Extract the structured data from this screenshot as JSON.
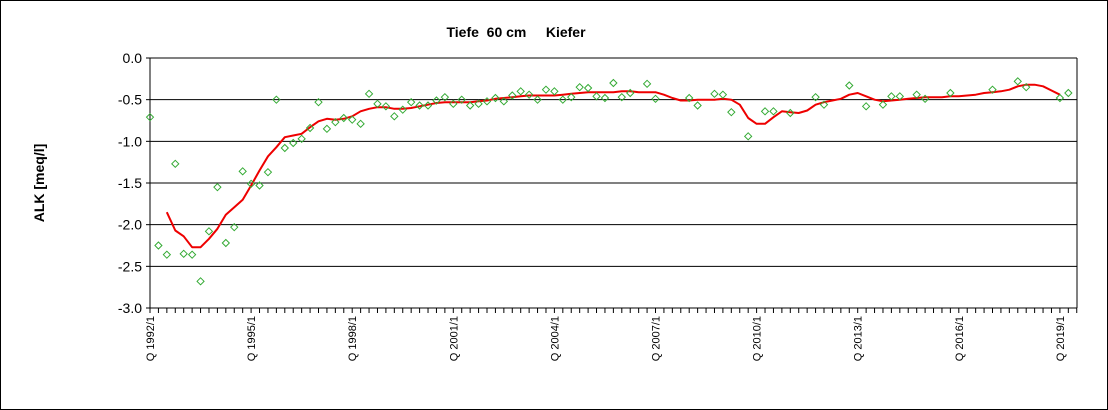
{
  "chart_data": {
    "type": "line",
    "title": "Tiefe  60 cm     Kiefer",
    "xlabel": "",
    "ylabel": "ALK [meq/l]",
    "ylim": [
      -3.0,
      0.0
    ],
    "yticks": [
      "0.0",
      "-0.5",
      "-1.0",
      "-1.5",
      "-2.0",
      "-2.5",
      "-3.0"
    ],
    "xticks": [
      "Q 1992/1",
      "Q 1995/1",
      "Q 1998/1",
      "Q 2001/1",
      "Q 2004/1",
      "Q 2007/1",
      "Q 2010/1",
      "Q 2013/1",
      "Q 2016/1",
      "Q 2019/1"
    ],
    "grid": "horizontal",
    "legend": "none",
    "colors": {
      "points": "#33aa33",
      "trend": "#ee0000",
      "grid": "#000000"
    },
    "series": [
      {
        "type": "scatter",
        "marker": "diamond-open",
        "points": [
          [
            "1992/1",
            -0.71
          ],
          [
            "1992/2",
            -2.25
          ],
          [
            "1992/3",
            -2.36
          ],
          [
            "1992/4",
            -1.27
          ],
          [
            "1993/1",
            -2.35
          ],
          [
            "1993/2",
            -2.36
          ],
          [
            "1993/3",
            -2.68
          ],
          [
            "1993/4",
            -2.08
          ],
          [
            "1994/1",
            -1.55
          ],
          [
            "1994/2",
            -2.22
          ],
          [
            "1994/3",
            -2.03
          ],
          [
            "1994/4",
            -1.36
          ],
          [
            "1995/1",
            -1.51
          ],
          [
            "1995/2",
            -1.53
          ],
          [
            "1995/3",
            -1.37
          ],
          [
            "1995/4",
            -0.5
          ],
          [
            "1996/1",
            -1.08
          ],
          [
            "1996/2",
            -1.02
          ],
          [
            "1996/3",
            -0.97
          ],
          [
            "1996/4",
            -0.84
          ],
          [
            "1997/1",
            -0.53
          ],
          [
            "1997/2",
            -0.85
          ],
          [
            "1997/3",
            -0.77
          ],
          [
            "1997/4",
            -0.72
          ],
          [
            "1998/1",
            -0.74
          ],
          [
            "1998/2",
            -0.79
          ],
          [
            "1998/3",
            -0.43
          ],
          [
            "1998/4",
            -0.55
          ],
          [
            "1999/1",
            -0.58
          ],
          [
            "1999/2",
            -0.7
          ],
          [
            "1999/3",
            -0.62
          ],
          [
            "1999/4",
            -0.53
          ],
          [
            "2000/1",
            -0.57
          ],
          [
            "2000/2",
            -0.57
          ],
          [
            "2000/3",
            -0.51
          ],
          [
            "2000/4",
            -0.47
          ],
          [
            "2001/1",
            -0.55
          ],
          [
            "2001/2",
            -0.5
          ],
          [
            "2001/3",
            -0.57
          ],
          [
            "2001/4",
            -0.55
          ],
          [
            "2002/1",
            -0.52
          ],
          [
            "2002/2",
            -0.48
          ],
          [
            "2002/3",
            -0.52
          ],
          [
            "2002/4",
            -0.45
          ],
          [
            "2003/1",
            -0.4
          ],
          [
            "2003/2",
            -0.44
          ],
          [
            "2003/3",
            -0.5
          ],
          [
            "2003/4",
            -0.38
          ],
          [
            "2004/1",
            -0.4
          ],
          [
            "2004/2",
            -0.5
          ],
          [
            "2004/3",
            -0.47
          ],
          [
            "2004/4",
            -0.35
          ],
          [
            "2005/1",
            -0.36
          ],
          [
            "2005/2",
            -0.46
          ],
          [
            "2005/3",
            -0.48
          ],
          [
            "2005/4",
            -0.3
          ],
          [
            "2006/1",
            -0.47
          ],
          [
            "2006/2",
            -0.42
          ],
          [
            "2006/4",
            -0.31
          ],
          [
            "2007/1",
            -0.49
          ],
          [
            "2008/1",
            -0.48
          ],
          [
            "2008/2",
            -0.57
          ],
          [
            "2008/4",
            -0.43
          ],
          [
            "2009/1",
            -0.44
          ],
          [
            "2009/2",
            -0.65
          ],
          [
            "2009/4",
            -0.94
          ],
          [
            "2010/2",
            -0.64
          ],
          [
            "2010/3",
            -0.64
          ],
          [
            "2011/1",
            -0.66
          ],
          [
            "2011/4",
            -0.47
          ],
          [
            "2012/1",
            -0.56
          ],
          [
            "2012/4",
            -0.33
          ],
          [
            "2013/2",
            -0.58
          ],
          [
            "2013/4",
            -0.56
          ],
          [
            "2014/1",
            -0.46
          ],
          [
            "2014/2",
            -0.46
          ],
          [
            "2014/4",
            -0.44
          ],
          [
            "2015/1",
            -0.49
          ],
          [
            "2015/4",
            -0.42
          ],
          [
            "2017/1",
            -0.38
          ],
          [
            "2017/4",
            -0.28
          ],
          [
            "2018/1",
            -0.35
          ],
          [
            "2019/1",
            -0.48
          ],
          [
            "2019/2",
            -0.42
          ]
        ]
      },
      {
        "type": "line",
        "points": [
          [
            "1992/3",
            -1.85
          ],
          [
            "1992/4",
            -2.07
          ],
          [
            "1993/1",
            -2.14
          ],
          [
            "1993/2",
            -2.27
          ],
          [
            "1993/3",
            -2.27
          ],
          [
            "1993/4",
            -2.17
          ],
          [
            "1994/1",
            -2.05
          ],
          [
            "1994/2",
            -1.88
          ],
          [
            "1994/3",
            -1.79
          ],
          [
            "1994/4",
            -1.7
          ],
          [
            "1995/1",
            -1.53
          ],
          [
            "1995/2",
            -1.35
          ],
          [
            "1995/3",
            -1.18
          ],
          [
            "1995/4",
            -1.07
          ],
          [
            "1996/1",
            -0.95
          ],
          [
            "1996/2",
            -0.93
          ],
          [
            "1996/3",
            -0.91
          ],
          [
            "1996/4",
            -0.83
          ],
          [
            "1997/1",
            -0.76
          ],
          [
            "1997/2",
            -0.73
          ],
          [
            "1997/3",
            -0.74
          ],
          [
            "1997/4",
            -0.73
          ],
          [
            "1998/1",
            -0.7
          ],
          [
            "1998/2",
            -0.64
          ],
          [
            "1998/3",
            -0.61
          ],
          [
            "1998/4",
            -0.59
          ],
          [
            "1999/1",
            -0.59
          ],
          [
            "1999/2",
            -0.61
          ],
          [
            "1999/3",
            -0.61
          ],
          [
            "1999/4",
            -0.6
          ],
          [
            "2000/1",
            -0.58
          ],
          [
            "2000/2",
            -0.56
          ],
          [
            "2000/3",
            -0.54
          ],
          [
            "2000/4",
            -0.53
          ],
          [
            "2001/1",
            -0.53
          ],
          [
            "2001/2",
            -0.53
          ],
          [
            "2001/3",
            -0.53
          ],
          [
            "2001/4",
            -0.52
          ],
          [
            "2002/1",
            -0.51
          ],
          [
            "2002/2",
            -0.49
          ],
          [
            "2002/3",
            -0.48
          ],
          [
            "2002/4",
            -0.47
          ],
          [
            "2003/1",
            -0.46
          ],
          [
            "2003/2",
            -0.45
          ],
          [
            "2003/3",
            -0.45
          ],
          [
            "2003/4",
            -0.45
          ],
          [
            "2004/1",
            -0.45
          ],
          [
            "2004/2",
            -0.44
          ],
          [
            "2004/3",
            -0.43
          ],
          [
            "2004/4",
            -0.42
          ],
          [
            "2005/1",
            -0.41
          ],
          [
            "2005/2",
            -0.41
          ],
          [
            "2005/3",
            -0.41
          ],
          [
            "2005/4",
            -0.41
          ],
          [
            "2006/1",
            -0.4
          ],
          [
            "2006/2",
            -0.4
          ],
          [
            "2006/3",
            -0.41
          ],
          [
            "2006/4",
            -0.41
          ],
          [
            "2007/1",
            -0.41
          ],
          [
            "2007/2",
            -0.44
          ],
          [
            "2007/3",
            -0.48
          ],
          [
            "2007/4",
            -0.51
          ],
          [
            "2008/1",
            -0.51
          ],
          [
            "2008/2",
            -0.5
          ],
          [
            "2008/3",
            -0.5
          ],
          [
            "2008/4",
            -0.5
          ],
          [
            "2009/1",
            -0.49
          ],
          [
            "2009/2",
            -0.5
          ],
          [
            "2009/3",
            -0.56
          ],
          [
            "2009/4",
            -0.72
          ],
          [
            "2010/1",
            -0.79
          ],
          [
            "2010/2",
            -0.79
          ],
          [
            "2010/3",
            -0.71
          ],
          [
            "2010/4",
            -0.64
          ],
          [
            "2011/1",
            -0.65
          ],
          [
            "2011/2",
            -0.66
          ],
          [
            "2011/3",
            -0.63
          ],
          [
            "2011/4",
            -0.56
          ],
          [
            "2012/1",
            -0.53
          ],
          [
            "2012/2",
            -0.51
          ],
          [
            "2012/3",
            -0.49
          ],
          [
            "2012/4",
            -0.44
          ],
          [
            "2013/1",
            -0.42
          ],
          [
            "2013/2",
            -0.46
          ],
          [
            "2013/3",
            -0.5
          ],
          [
            "2013/4",
            -0.52
          ],
          [
            "2014/1",
            -0.51
          ],
          [
            "2014/2",
            -0.5
          ],
          [
            "2014/3",
            -0.49
          ],
          [
            "2014/4",
            -0.48
          ],
          [
            "2015/1",
            -0.47
          ],
          [
            "2015/2",
            -0.47
          ],
          [
            "2015/3",
            -0.47
          ],
          [
            "2015/4",
            -0.46
          ],
          [
            "2016/1",
            -0.46
          ],
          [
            "2016/2",
            -0.45
          ],
          [
            "2016/3",
            -0.44
          ],
          [
            "2016/4",
            -0.42
          ],
          [
            "2017/1",
            -0.41
          ],
          [
            "2017/2",
            -0.4
          ],
          [
            "2017/3",
            -0.38
          ],
          [
            "2017/4",
            -0.34
          ],
          [
            "2018/1",
            -0.32
          ],
          [
            "2018/2",
            -0.32
          ],
          [
            "2018/3",
            -0.34
          ],
          [
            "2018/4",
            -0.39
          ],
          [
            "2019/1",
            -0.44
          ]
        ]
      }
    ]
  }
}
